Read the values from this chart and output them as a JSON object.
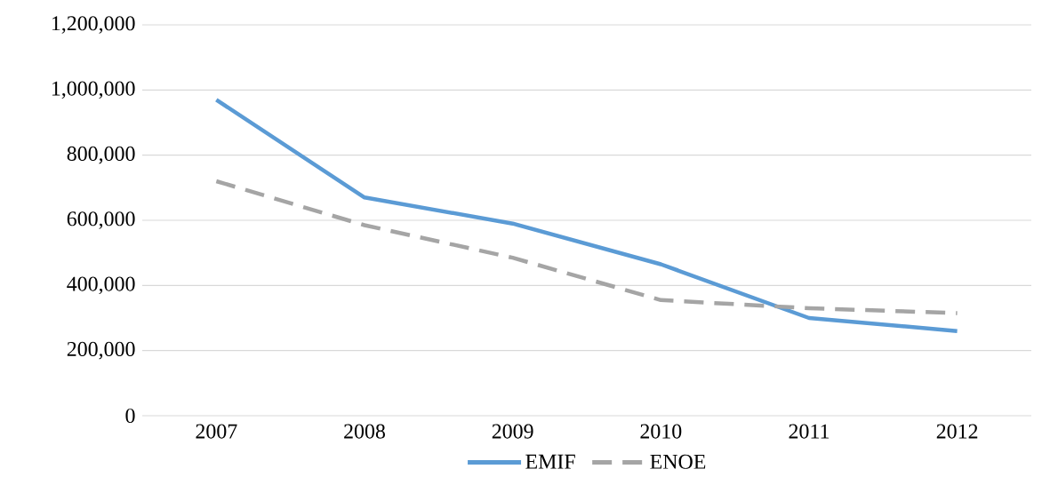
{
  "chart_data": {
    "type": "line",
    "categories": [
      "2007",
      "2008",
      "2009",
      "2010",
      "2011",
      "2012"
    ],
    "series": [
      {
        "name": "EMIF",
        "color": "#5b9bd5",
        "line_style": "solid",
        "values": [
          970000,
          670000,
          590000,
          465000,
          300000,
          260000
        ]
      },
      {
        "name": "ENOE",
        "color": "#a5a5a5",
        "line_style": "dashed",
        "values": [
          720000,
          585000,
          485000,
          355000,
          330000,
          315000
        ]
      }
    ],
    "ylim": [
      0,
      1200000
    ],
    "yticks": [
      {
        "value": 0,
        "label": "0"
      },
      {
        "value": 200000,
        "label": "200,000"
      },
      {
        "value": 400000,
        "label": "400,000"
      },
      {
        "value": 600000,
        "label": "600,000"
      },
      {
        "value": 800000,
        "label": "800,000"
      },
      {
        "value": 1000000,
        "label": "1,000,000"
      },
      {
        "value": 1200000,
        "label": "1,200,000"
      }
    ],
    "grid": "y",
    "legend": "bottom",
    "marker": "none"
  }
}
